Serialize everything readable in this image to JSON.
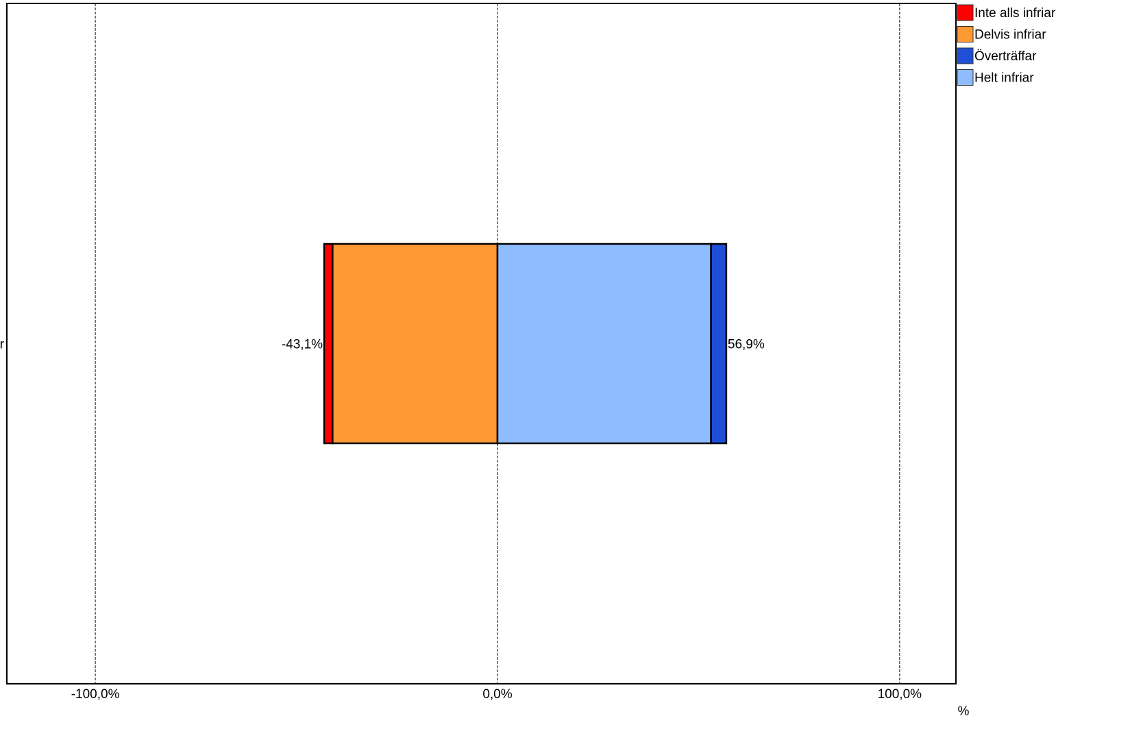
{
  "chart_data": {
    "type": "bar",
    "orientation": "horizontal",
    "stacked": "diverging",
    "categories": [
      "r"
    ],
    "xlabel": "%",
    "xlim": [
      -122,
      114
    ],
    "xticks": [
      {
        "value": -100,
        "label": "-100,0%"
      },
      {
        "value": 0,
        "label": "0,0%"
      },
      {
        "value": 100,
        "label": "100,0%"
      }
    ],
    "grid": "vertical dashed",
    "legend_position": "top-right",
    "series": [
      {
        "name": "Inte alls infriar",
        "color": "#ff0000",
        "start": -43.1,
        "end": -41.0
      },
      {
        "name": "Delvis infriar",
        "color": "#ff9933",
        "start": -41.0,
        "end": 0
      },
      {
        "name": "Helt infriar",
        "color": "#8fbcff",
        "start": 0,
        "end": 53.1
      },
      {
        "name": "Överträffar",
        "color": "#1f4fd6",
        "start": 53.1,
        "end": 56.9
      }
    ],
    "legend_order": [
      "Inte alls infriar",
      "Delvis infriar",
      "Överträffar",
      "Helt infriar"
    ],
    "totals": {
      "negative": {
        "value": -43.1,
        "label": "-43,1%"
      },
      "positive": {
        "value": 56.9,
        "label": "56,9%"
      }
    }
  }
}
